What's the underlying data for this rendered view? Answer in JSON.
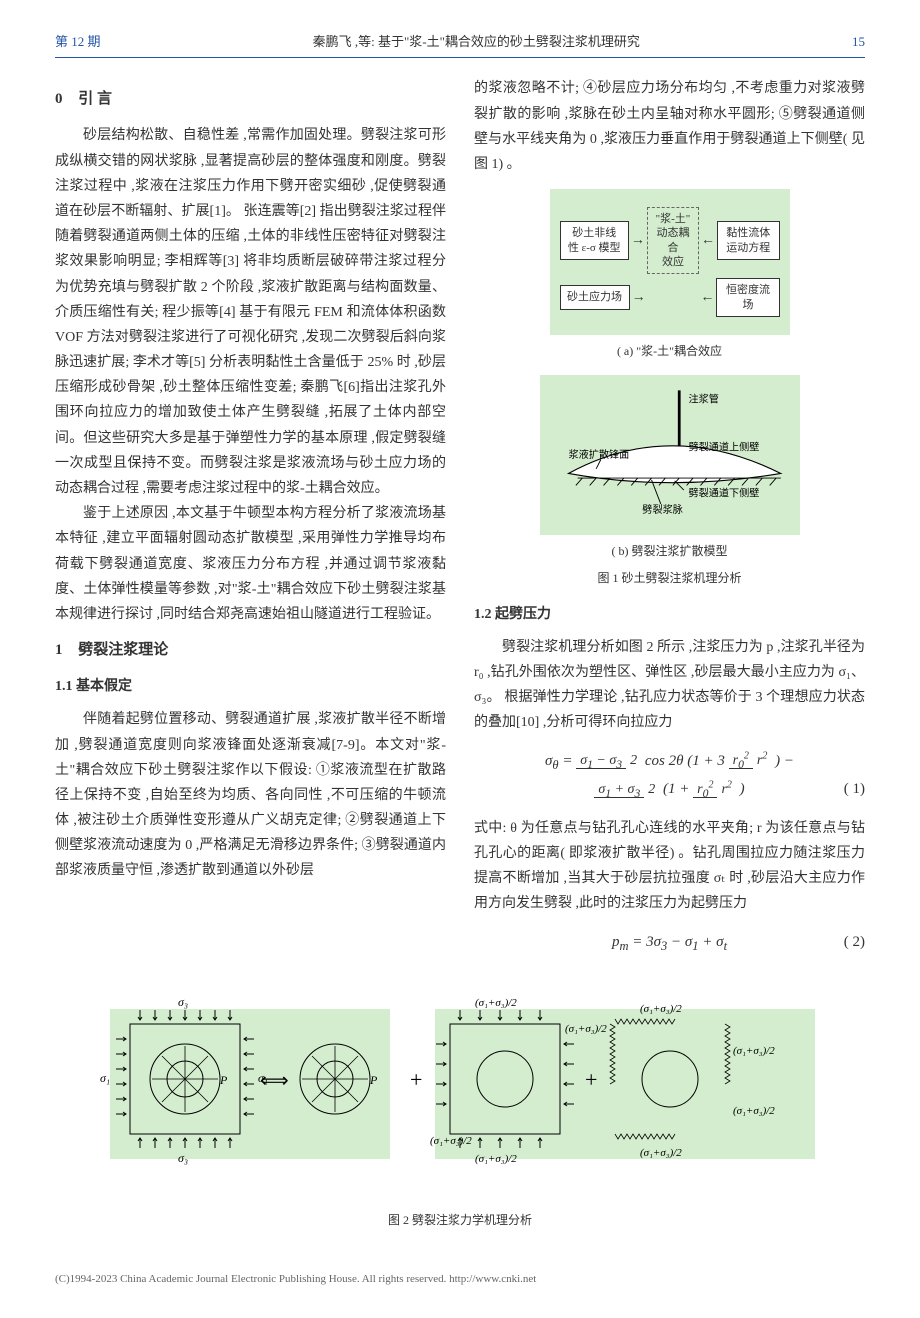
{
  "header": {
    "issue": "第 12 期",
    "title": "秦鹏飞 ,等: 基于\"浆-土\"耦合效应的砂土劈裂注浆机理研究",
    "page": "15"
  },
  "left": {
    "sec0_num": "0",
    "sec0_title": "引  言",
    "p1": "砂层结构松散、自稳性差 ,常需作加固处理。劈裂注浆可形成纵横交错的网状浆脉 ,显著提高砂层的整体强度和刚度。劈裂注浆过程中 ,浆液在注浆压力作用下劈开密实细砂 ,促使劈裂通道在砂层不断辐射、扩展[1]。 张连震等[2] 指出劈裂注浆过程伴随着劈裂通道两侧土体的压缩 ,土体的非线性压密特征对劈裂注浆效果影响明显; 李相辉等[3] 将非均质断层破碎带注浆过程分为优势充填与劈裂扩散 2 个阶段 ,浆液扩散距离与结构面数量、介质压缩性有关; 程少振等[4] 基于有限元 FEM 和流体体积函数 VOF 方法对劈裂注浆进行了可视化研究 ,发现二次劈裂后斜向浆脉迅速扩展; 李术才等[5] 分析表明黏性土含量低于 25% 时 ,砂层压缩形成砂骨架 ,砂土整体压缩性变差; 秦鹏飞[6]指出注浆孔外围环向拉应力的增加致使土体产生劈裂缝 ,拓展了土体内部空间。但这些研究大多是基于弹塑性力学的基本原理 ,假定劈裂缝一次成型且保持不变。而劈裂注浆是浆液流场与砂土应力场的动态耦合过程 ,需要考虑注浆过程中的浆-土耦合效应。",
    "p2": "鉴于上述原因 ,本文基于牛顿型本构方程分析了浆液流场基本特征 ,建立平面辐射圆动态扩散模型 ,采用弹性力学推导均布荷载下劈裂通道宽度、浆液压力分布方程 ,并通过调节浆液黏度、土体弹性模量等参数 ,对\"浆-土\"耦合效应下砂土劈裂注浆基本规律进行探讨 ,同时结合郑尧高速始祖山隧道进行工程验证。",
    "sec1_num": "1",
    "sec1_title": "劈裂注浆理论",
    "sub11": "1.1  基本假定",
    "p3": "伴随着起劈位置移动、劈裂通道扩展 ,浆液扩散半径不断增加 ,劈裂通道宽度则向浆液锋面处逐渐衰减[7-9]。本文对\"浆-土\"耦合效应下砂土劈裂注浆作以下假设: ①浆液流型在扩散路径上保持不变 ,自始至终为均质、各向同性 ,不可压缩的牛顿流体 ,被注砂土介质弹性变形遵从广义胡克定律; ②劈裂通道上下侧壁浆液流动速度为 0 ,严格满足无滑移边界条件; ③劈裂通道内部浆液质量守恒 ,渗透扩散到通道以外砂层"
  },
  "right": {
    "p0": "的浆液忽略不计; ④砂层应力场分布均匀 ,不考虑重力对浆液劈裂扩散的影响 ,浆脉在砂土内呈轴对称水平圆形; ⑤劈裂通道侧壁与水平线夹角为 0 ,浆液压力垂直作用于劈裂通道上下侧壁( 见图 1) 。",
    "fig1a": {
      "box_tl": "砂土非线\n性 ε-σ 模型",
      "box_tr": "黏性流体\n运动方程",
      "box_c": "\"浆-土\"\n动态耦合\n效应",
      "box_bl": "砂土应力场",
      "box_br": "恒密度流场",
      "cap": "( a)  \"浆-土\"耦合效应"
    },
    "fig1b": {
      "lab_pipe": "注浆管",
      "lab_front": "浆液扩散锋面",
      "lab_upper": "劈裂通道上侧壁",
      "lab_lower": "劈裂通道下侧壁",
      "lab_vein": "劈裂浆脉",
      "cap": "( b)  劈裂注浆扩散模型",
      "title": "图 1  砂土劈裂注浆机理分析"
    },
    "sub12": "1.2  起劈压力",
    "p4": "劈裂注浆机理分析如图 2 所示 ,注浆压力为 p ,注浆孔半径为 r₀ ,钻孔外围依次为塑性区、弹性区 ,砂层最大最小主应力为 σ₁、σ₃。 根据弹性力学理论 ,钻孔应力状态等价于 3 个理想应力状态的叠加[10] ,分析可得环向拉应力",
    "p5": "式中: θ 为任意点与钻孔孔心连线的水平夹角; r 为该任意点与钻孔孔心的距离( 即浆液扩散半径) 。钻孔周围拉应力随注浆压力提高不断增加 ,当其大于砂层抗拉强度 σₜ 时 ,砂层沿大主应力作用方向发生劈裂 ,此时的注浆压力为起劈压力"
  },
  "eq1": {
    "text": "σθ = (σ₁−σ₃)/2 · cos 2θ (1 + 3 r₀²/r²) − (σ₁+σ₃)/2 · (1 + r₀²/r²)",
    "num": "( 1)"
  },
  "eq2": {
    "text": "pₘ = 3σ₃ − σ₁ + σₜ",
    "num": "( 2)"
  },
  "fig2": {
    "cap": "图 2  劈裂注浆力学机理分析",
    "sig1": "σ₁",
    "sig3": "σ₃",
    "P": "P",
    "lab_half": "(σ₁+σ₃)/2"
  },
  "footer": "(C)1994-2023 China Academic Journal Electronic Publishing House. All rights reserved.    http://www.cnki.net"
}
